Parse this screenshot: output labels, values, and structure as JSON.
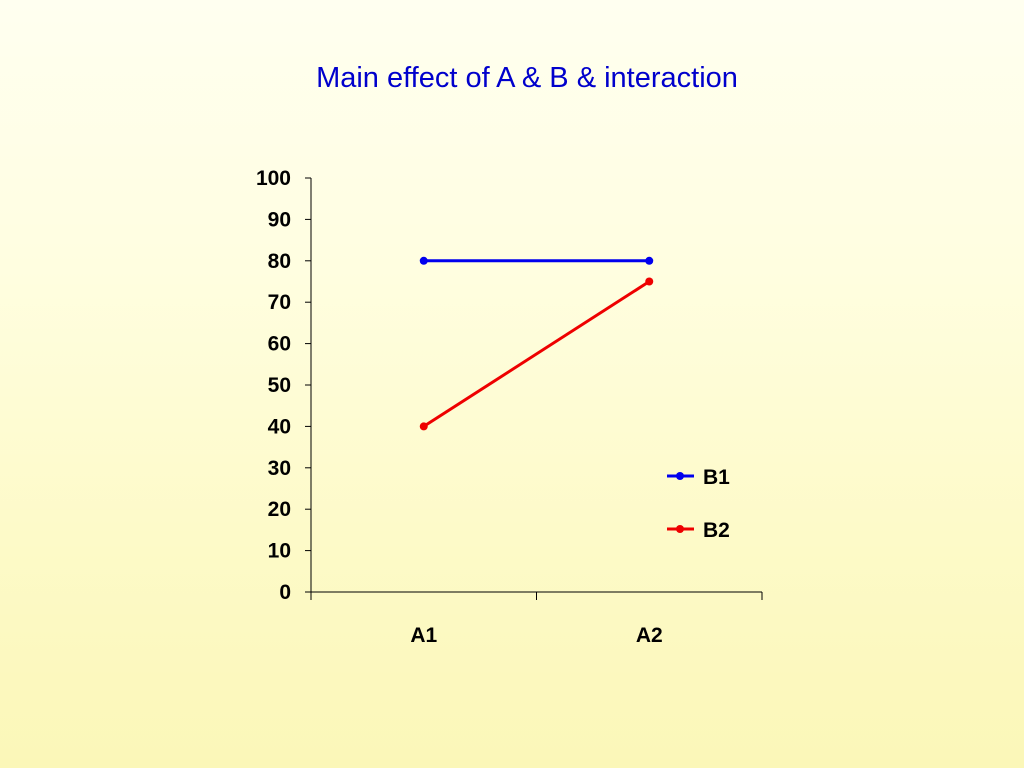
{
  "chart_data": {
    "type": "line",
    "title": "Main effect of A & B & interaction",
    "categories": [
      "A1",
      "A2"
    ],
    "series": [
      {
        "name": "B1",
        "values": [
          80,
          80
        ],
        "color": "#0000ee"
      },
      {
        "name": "B2",
        "values": [
          40,
          75
        ],
        "color": "#ee0000"
      }
    ],
    "xlabel": "",
    "ylabel": "",
    "ylim": [
      0,
      100
    ],
    "yticks": [
      0,
      10,
      20,
      30,
      40,
      50,
      60,
      70,
      80,
      90,
      100
    ],
    "grid": false,
    "legend": "right"
  }
}
